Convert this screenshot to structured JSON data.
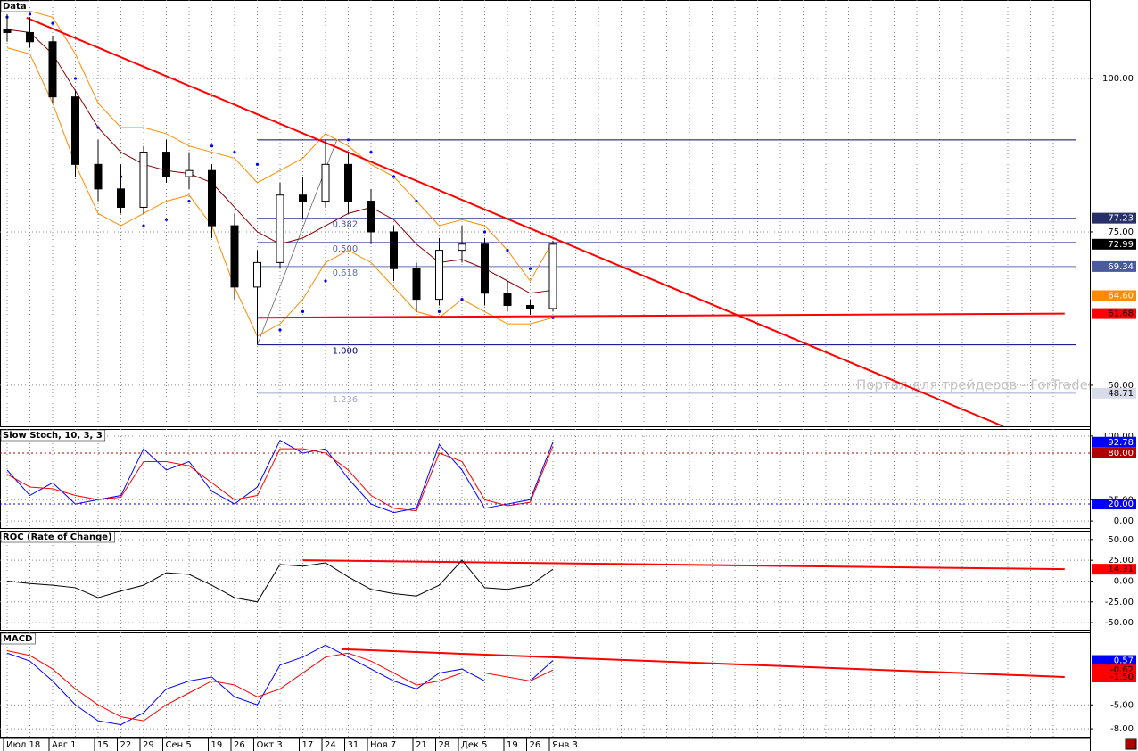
{
  "chart_data": [
    {
      "type": "candlestick",
      "title": "Data",
      "categories": [
        "Июл 18",
        null,
        "Авг 1",
        null,
        "15",
        "22",
        "29",
        "Сен 5",
        null,
        "19",
        "26",
        "Окт 3",
        null,
        "17",
        "24",
        "31",
        "Ноя 7",
        null,
        "21",
        "28",
        "Дек 5",
        null,
        "19",
        "26",
        "Янв 3"
      ],
      "open": [
        108,
        107.5,
        106,
        97,
        86,
        82,
        79,
        88,
        84,
        85,
        76,
        66,
        70,
        81,
        80,
        86,
        80,
        75,
        69,
        64,
        72,
        73,
        65,
        63,
        62.5
      ],
      "high": [
        110.5,
        110,
        107,
        98,
        90,
        86,
        89,
        90,
        88,
        86,
        78,
        72,
        83,
        84,
        90,
        88,
        82,
        76,
        70,
        74,
        76,
        74,
        67,
        64,
        73.5
      ],
      "low": [
        106,
        105,
        96,
        84,
        80,
        78,
        78,
        83,
        82,
        74,
        64,
        56.6,
        69,
        77,
        79,
        78,
        73,
        67,
        62,
        63,
        70,
        63,
        62,
        61.5,
        62
      ],
      "close": [
        107.5,
        106,
        97,
        86,
        82,
        79,
        88,
        84,
        85,
        76,
        66,
        70,
        81,
        80,
        86,
        80,
        75,
        69,
        64,
        72,
        73,
        65,
        63,
        62.5,
        72.99
      ],
      "color_up": "#ffffff",
      "color_down": "#000000",
      "ylim": [
        43.3,
        112.8
      ],
      "yticks": [
        {
          "value": 50,
          "label": "50.00"
        },
        {
          "value": 75,
          "label": "75.00"
        },
        {
          "value": 100,
          "label": "100.00"
        }
      ],
      "grid": true,
      "overlays": [
        {
          "color": "#8b0000",
          "style": "line",
          "values": [
            108,
            107.5,
            104,
            98,
            92,
            88,
            86,
            85,
            84.5,
            83,
            79,
            75,
            73,
            74,
            76,
            78,
            79,
            77,
            73,
            70,
            70.5,
            69,
            67,
            65,
            65.5
          ]
        },
        {
          "color": "#ff8c00",
          "style": "line",
          "values": [
            111,
            111,
            110,
            104,
            96,
            92,
            92,
            91,
            89,
            88,
            87,
            83,
            85,
            87,
            91,
            89,
            86,
            84,
            80,
            76,
            77,
            76,
            72,
            67,
            73.5
          ]
        },
        {
          "color": "#ff8c00",
          "style": "line",
          "values": [
            105,
            104,
            96,
            86,
            78,
            76,
            78,
            80,
            81,
            76,
            66,
            58,
            60,
            64,
            70,
            72,
            70,
            66,
            62,
            61,
            64,
            62,
            60,
            60,
            61
          ]
        },
        {
          "color": "#0000ff",
          "style": "dots",
          "values": [
            110,
            110.5,
            109,
            100,
            92,
            84,
            76,
            77,
            80,
            89,
            88,
            86,
            59,
            62,
            67,
            90,
            88,
            84,
            80,
            62,
            64,
            75,
            72,
            69,
            61
          ]
        }
      ],
      "fibonacci": {
        "high": 89.99,
        "low": 56.58,
        "x": [
          11,
          47
        ],
        "color": "#00007f",
        "levels": [
          {
            "value": 0.382,
            "label": "0.382",
            "color": "#4a5a9a"
          },
          {
            "value": 0.5,
            "label": "0.500",
            "color": "#5060a0"
          },
          {
            "value": 0.618,
            "label": "0.618",
            "color": "#6070a8"
          },
          {
            "value": 1,
            "label": "1.000",
            "color": "#00007f"
          },
          {
            "value": 1.236,
            "label": "1.236",
            "color": "#a0a8c8"
          }
        ]
      },
      "trendlines": [
        {
          "color": "#ff0000",
          "x": [
            0.86,
            43.8
          ],
          "values": [
            109.9,
            43.3
          ]
        },
        {
          "color": "#ff0000",
          "x": [
            11,
            46.5
          ],
          "values": [
            61.0,
            61.68
          ]
        }
      ],
      "markers": [
        {
          "value": 77.23,
          "label": "77.23",
          "color": "#28306a",
          "text_color": "#ffffff"
        },
        {
          "value": 72.99,
          "label": "72.99",
          "color": "#000000",
          "text_color": "#ffffff"
        },
        {
          "value": 69.34,
          "label": "69.34",
          "color": "#4a5a9a",
          "text_color": "#ffffff"
        },
        {
          "value": 64.6,
          "label": "64.60",
          "color": "#ff8c00",
          "text_color": "#ffffff"
        },
        {
          "value": 61.68,
          "label": "61.68",
          "color": "#ff0000",
          "text_color": "#000000"
        },
        {
          "value": 48.71,
          "label": "48.71",
          "color": "#d8dce8",
          "text_color": "#000000"
        }
      ],
      "watermark": "Портал для трейдеров - ForTrader"
    },
    {
      "type": "line",
      "title": "Slow Stoch, 10, 3, 3",
      "ylim": [
        -8.3,
        108.3
      ],
      "yticks": [
        {
          "value": 0,
          "label": "0.00"
        },
        {
          "value": 25,
          "label": "25.00"
        },
        {
          "value": 100,
          "label": "100.00"
        }
      ],
      "grid": true,
      "series": [
        {
          "color": "#0000ff",
          "values": [
            60,
            30,
            45,
            20,
            25,
            30,
            85,
            60,
            70,
            35,
            20,
            40,
            95,
            80,
            85,
            50,
            20,
            10,
            15,
            90,
            60,
            15,
            20,
            25,
            92.78
          ]
        },
        {
          "color": "#ff0000",
          "values": [
            55,
            40,
            38,
            30,
            25,
            28,
            70,
            70,
            65,
            45,
            25,
            30,
            85,
            85,
            80,
            60,
            30,
            15,
            12,
            80,
            70,
            25,
            18,
            22,
            88
          ]
        }
      ],
      "markers": [
        {
          "value": 92.78,
          "label": "92.78",
          "color": "#0000ff",
          "text_color": "#ffffff",
          "dotted_line": false
        },
        {
          "value": 80,
          "label": "80.00",
          "color": "#b00000",
          "text_color": "#ffffff",
          "dotted_line": true
        },
        {
          "value": 20,
          "label": "20.00",
          "color": "#0000ff",
          "text_color": "#ffffff",
          "dotted_line": true
        }
      ]
    },
    {
      "type": "line",
      "title": "ROC (Rate of Change)",
      "ylim": [
        -58.5,
        60.6
      ],
      "yticks": [
        {
          "value": -50,
          "label": "-50.00"
        },
        {
          "value": -25,
          "label": "-25.00"
        },
        {
          "value": 0,
          "label": "0.00"
        },
        {
          "value": 25,
          "label": "25.00"
        },
        {
          "value": 50,
          "label": "50.00"
        }
      ],
      "grid": true,
      "series": [
        {
          "color": "#000000",
          "values": [
            0,
            -3,
            -5,
            -8,
            -20,
            -12,
            -5,
            10,
            8,
            -5,
            -20,
            -25,
            20,
            18,
            22,
            5,
            -10,
            -15,
            -18,
            -5,
            25,
            -8,
            -10,
            -5,
            14.31
          ]
        }
      ],
      "trendlines": [
        {
          "color": "#ff0000",
          "x": [
            13,
            46.5
          ],
          "values": [
            25,
            14.31
          ]
        }
      ],
      "markers": [
        {
          "value": 14.31,
          "label": "14.31",
          "color": "#ff0000",
          "text_color": "#000000",
          "dotted_line": false
        }
      ]
    },
    {
      "type": "line",
      "title": "MACD",
      "ylim": [
        -9.0,
        4.1
      ],
      "yticks": [
        {
          "value": -8,
          "label": "-8.00"
        },
        {
          "value": -5,
          "label": "-5.00"
        }
      ],
      "grid": true,
      "series": [
        {
          "color": "#0000ff",
          "values": [
            1.5,
            0.5,
            -2,
            -5,
            -7,
            -7.5,
            -6,
            -3,
            -2,
            -1.5,
            -4,
            -5,
            0,
            1,
            2.5,
            1,
            -0.5,
            -2,
            -3,
            -1,
            -0.5,
            -2,
            -2,
            -2,
            0.57
          ]
        },
        {
          "color": "#ff0000",
          "values": [
            1.8,
            1.2,
            -0.5,
            -3,
            -5,
            -6.5,
            -7,
            -5,
            -3.5,
            -2,
            -2.5,
            -4,
            -3,
            -1,
            1,
            1.5,
            0.5,
            -1,
            -2.5,
            -2,
            -1,
            -1,
            -1.5,
            -2,
            -0.62
          ]
        }
      ],
      "trendlines": [
        {
          "color": "#ff0000",
          "x": [
            14.7,
            46.5
          ],
          "values": [
            2.0,
            -1.5
          ]
        }
      ],
      "markers": [
        {
          "value": 0.57,
          "label": "0.57",
          "color": "#0000ff",
          "text_color": "#ffffff",
          "dotted_line": false
        },
        {
          "value": -0.62,
          "label": "-0.62",
          "color": "#ff0000",
          "text_color": "#000000",
          "dotted_line": false
        },
        {
          "value": -1.5,
          "label": "-1.50",
          "color": "#ff0000",
          "text_color": "#000000",
          "dotted_line": false
        }
      ]
    }
  ]
}
